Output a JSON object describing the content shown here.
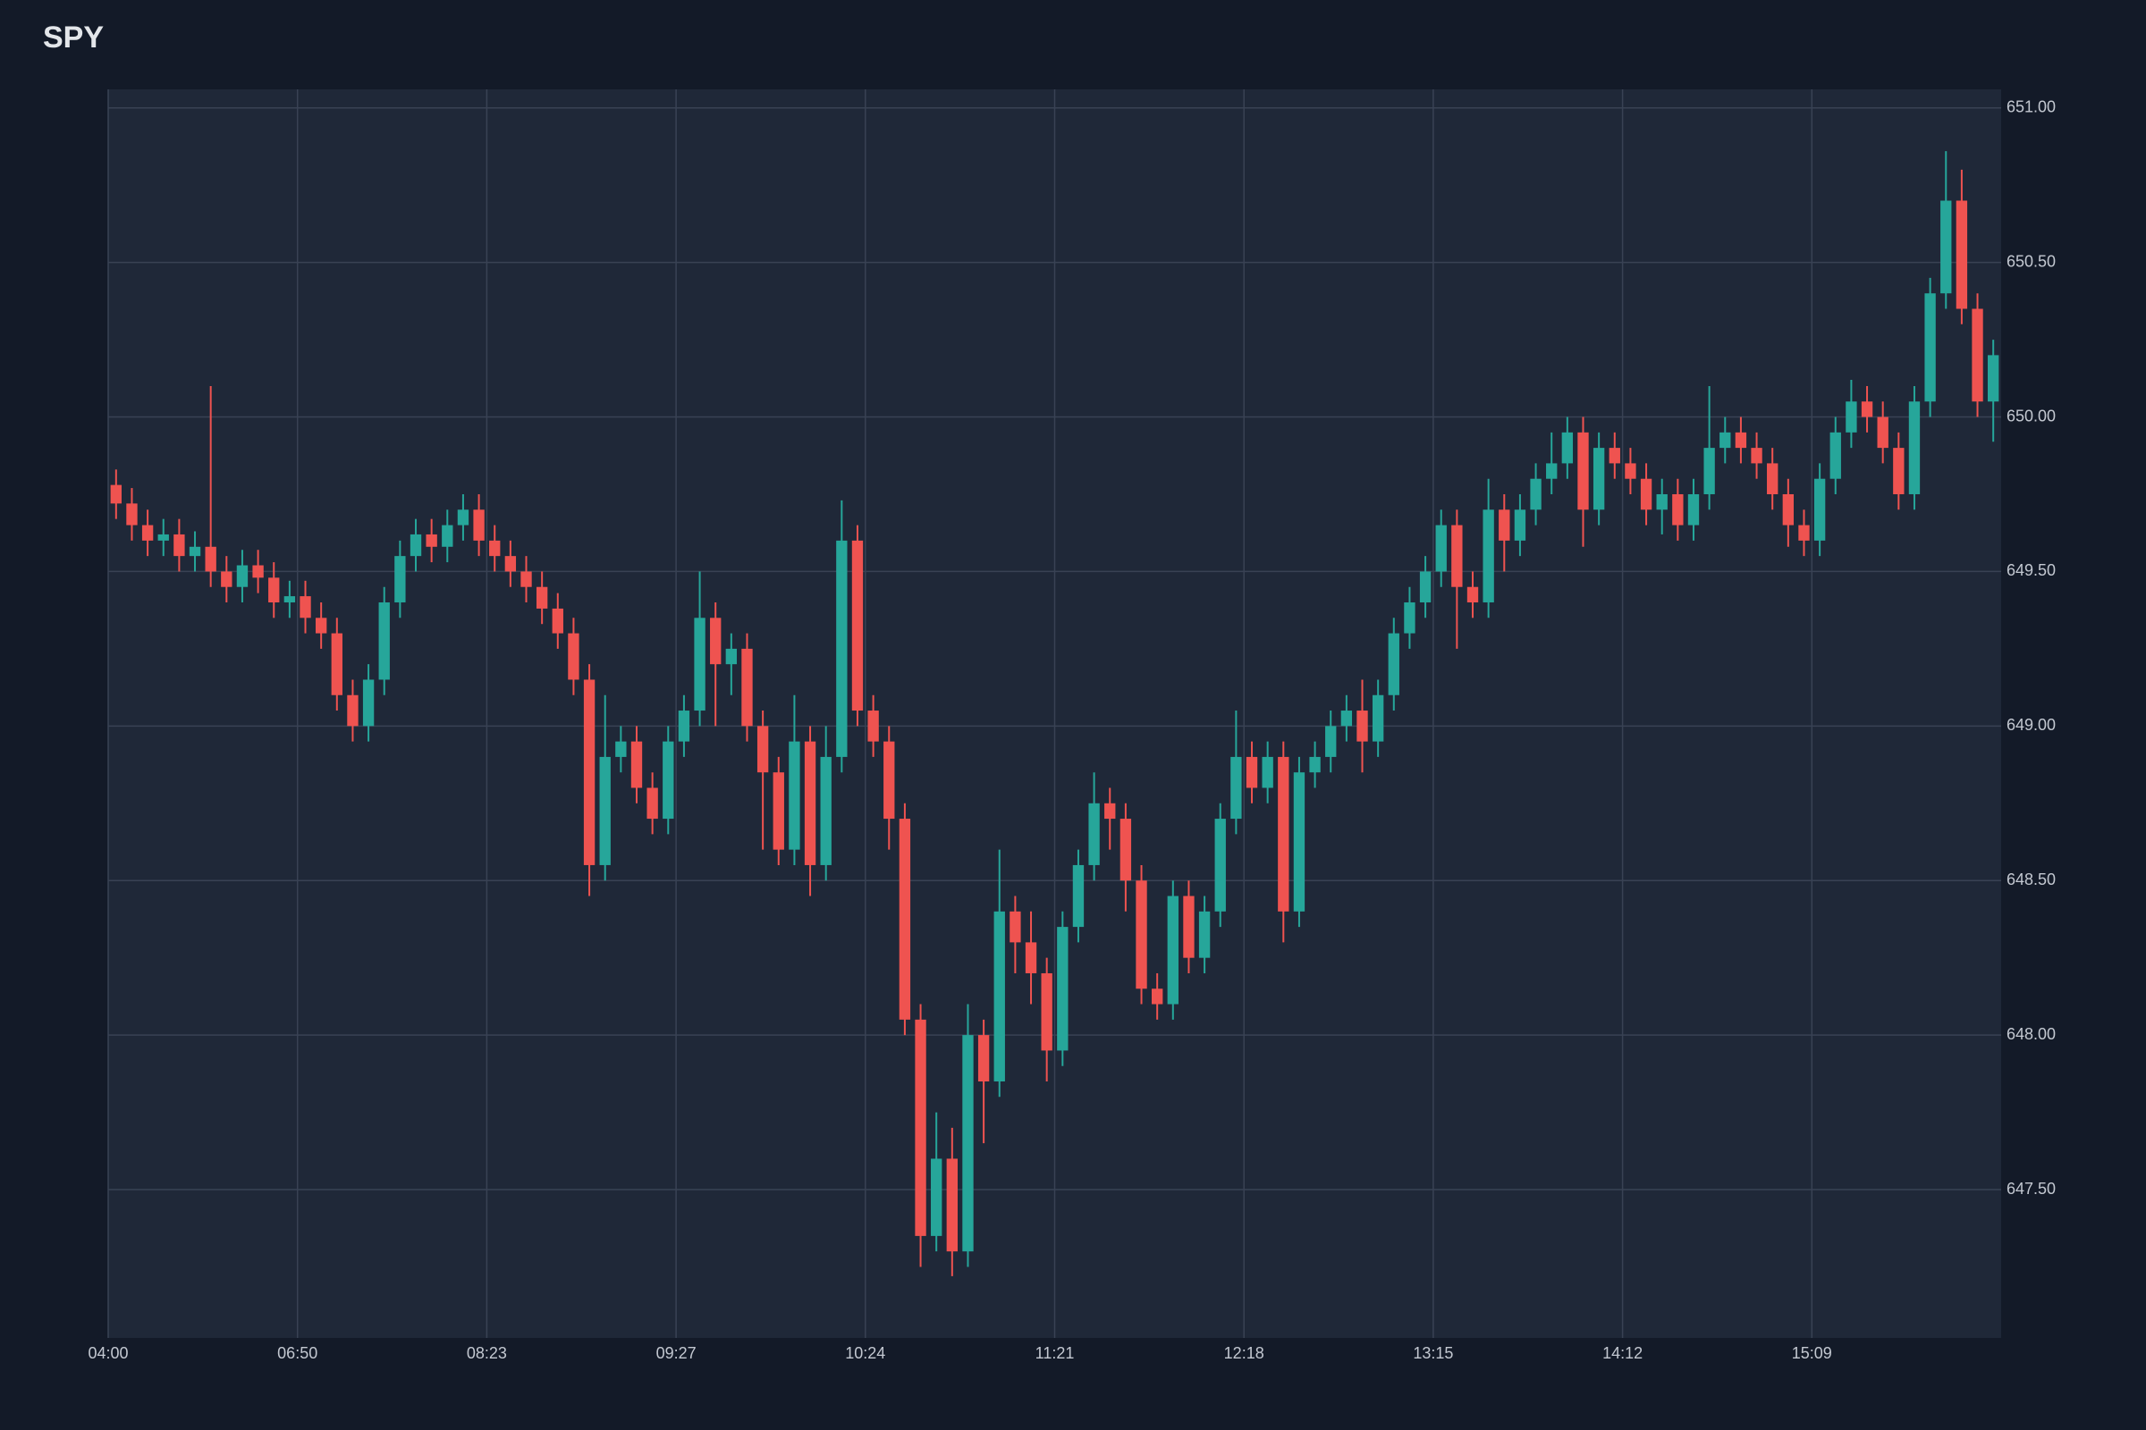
{
  "chart_data": {
    "type": "candlestick",
    "title": "SPY",
    "up_color": "#26a69a",
    "down_color": "#ef5350",
    "grid": true,
    "ylim": [
      647.02,
      651.06
    ],
    "yticks": [
      {
        "value": 647.5,
        "label": "647.50"
      },
      {
        "value": 648,
        "label": "648.00"
      },
      {
        "value": 648.5,
        "label": "648.50"
      },
      {
        "value": 649,
        "label": "649.00"
      },
      {
        "value": 649.5,
        "label": "649.50"
      },
      {
        "value": 650,
        "label": "650.00"
      },
      {
        "value": 650.5,
        "label": "650.50"
      },
      {
        "value": 651,
        "label": "651.00"
      }
    ],
    "categories": [
      "04:00",
      null,
      null,
      null,
      null,
      null,
      null,
      null,
      null,
      null,
      null,
      null,
      "06:50",
      null,
      null,
      null,
      null,
      null,
      null,
      null,
      null,
      null,
      null,
      null,
      "08:23",
      null,
      null,
      null,
      null,
      null,
      null,
      null,
      null,
      null,
      null,
      null,
      "09:27",
      null,
      null,
      null,
      null,
      null,
      null,
      null,
      null,
      null,
      null,
      null,
      "10:24",
      null,
      null,
      null,
      null,
      null,
      null,
      null,
      null,
      null,
      null,
      null,
      "11:21",
      null,
      null,
      null,
      null,
      null,
      null,
      null,
      null,
      null,
      null,
      null,
      "12:18",
      null,
      null,
      null,
      null,
      null,
      null,
      null,
      null,
      null,
      null,
      null,
      "13:15",
      null,
      null,
      null,
      null,
      null,
      null,
      null,
      null,
      null,
      null,
      null,
      "14:12",
      null,
      null,
      null,
      null,
      null,
      null,
      null,
      null,
      null,
      null,
      null,
      "15:09",
      null,
      null,
      null,
      null,
      null,
      null,
      null,
      null,
      null,
      null,
      null
    ],
    "open": [
      649.78,
      649.72,
      649.65,
      649.6,
      649.62,
      649.55,
      649.58,
      649.5,
      649.45,
      649.52,
      649.48,
      649.4,
      649.42,
      649.35,
      649.3,
      649.1,
      649.0,
      649.15,
      649.4,
      649.55,
      649.62,
      649.58,
      649.65,
      649.7,
      649.6,
      649.55,
      649.5,
      649.45,
      649.38,
      649.3,
      649.15,
      648.55,
      648.9,
      648.95,
      648.8,
      648.7,
      648.95,
      649.05,
      649.35,
      649.2,
      649.25,
      649.0,
      648.85,
      648.6,
      648.95,
      648.55,
      648.9,
      649.6,
      649.05,
      648.95,
      648.7,
      648.05,
      647.35,
      647.6,
      647.3,
      648.0,
      647.85,
      648.4,
      648.3,
      648.2,
      647.95,
      648.35,
      648.55,
      648.75,
      648.7,
      648.5,
      648.15,
      648.1,
      648.45,
      648.25,
      648.4,
      648.7,
      648.9,
      648.8,
      648.9,
      648.4,
      648.85,
      648.9,
      649.0,
      649.05,
      648.95,
      649.1,
      649.3,
      649.4,
      649.5,
      649.65,
      649.45,
      649.4,
      649.7,
      649.6,
      649.7,
      649.8,
      649.85,
      649.95,
      649.7,
      649.9,
      649.85,
      649.8,
      649.7,
      649.75,
      649.65,
      649.75,
      649.9,
      649.95,
      649.9,
      649.85,
      649.75,
      649.65,
      649.6,
      649.8,
      649.95,
      650.05,
      650.0,
      649.9,
      649.75,
      650.05,
      650.4,
      650.7,
      650.35,
      650.05
    ],
    "high": [
      649.83,
      649.77,
      649.7,
      649.67,
      649.67,
      649.63,
      650.1,
      649.55,
      649.57,
      649.57,
      649.53,
      649.47,
      649.47,
      649.4,
      649.35,
      649.15,
      649.2,
      649.45,
      649.6,
      649.67,
      649.67,
      649.7,
      649.75,
      649.75,
      649.65,
      649.6,
      649.55,
      649.5,
      649.43,
      649.35,
      649.2,
      649.1,
      649.0,
      649.0,
      648.85,
      649.0,
      649.1,
      649.5,
      649.4,
      649.3,
      649.3,
      649.05,
      648.9,
      649.1,
      649.0,
      649.0,
      649.73,
      649.65,
      649.1,
      649.0,
      648.75,
      648.1,
      647.75,
      647.7,
      648.1,
      648.05,
      648.6,
      648.45,
      648.4,
      648.25,
      648.4,
      648.6,
      648.85,
      648.8,
      648.75,
      648.55,
      648.2,
      648.5,
      648.5,
      648.45,
      648.75,
      649.05,
      648.95,
      648.95,
      648.95,
      648.9,
      648.95,
      649.05,
      649.1,
      649.15,
      649.15,
      649.35,
      649.45,
      649.55,
      649.7,
      649.7,
      649.5,
      649.8,
      649.75,
      649.75,
      649.85,
      649.95,
      650.0,
      650.0,
      649.95,
      649.95,
      649.9,
      649.85,
      649.8,
      649.8,
      649.8,
      650.1,
      650.0,
      650.0,
      649.95,
      649.9,
      649.8,
      649.7,
      649.85,
      650.0,
      650.12,
      650.1,
      650.05,
      649.95,
      650.1,
      650.45,
      650.86,
      650.8,
      650.4,
      650.25
    ],
    "low": [
      649.67,
      649.6,
      649.55,
      649.55,
      649.5,
      649.5,
      649.45,
      649.4,
      649.4,
      649.43,
      649.35,
      649.35,
      649.3,
      649.25,
      649.05,
      648.95,
      648.95,
      649.1,
      649.35,
      649.5,
      649.53,
      649.53,
      649.6,
      649.55,
      649.5,
      649.45,
      649.4,
      649.33,
      649.25,
      649.1,
      648.45,
      648.5,
      648.85,
      648.75,
      648.65,
      648.65,
      648.9,
      649.0,
      649.0,
      649.1,
      648.95,
      648.6,
      648.55,
      648.55,
      648.45,
      648.5,
      648.85,
      649.0,
      648.9,
      648.6,
      648.0,
      647.25,
      647.3,
      647.22,
      647.25,
      647.65,
      647.8,
      648.2,
      648.1,
      647.85,
      647.9,
      648.3,
      648.5,
      648.6,
      648.4,
      648.1,
      648.05,
      648.05,
      648.2,
      648.2,
      648.35,
      648.65,
      648.75,
      648.75,
      648.3,
      648.35,
      648.8,
      648.85,
      648.95,
      648.85,
      648.9,
      649.05,
      649.25,
      649.35,
      649.45,
      649.25,
      649.35,
      649.35,
      649.5,
      649.55,
      649.65,
      649.75,
      649.8,
      649.58,
      649.65,
      649.8,
      649.75,
      649.65,
      649.62,
      649.6,
      649.6,
      649.7,
      649.85,
      649.85,
      649.8,
      649.7,
      649.58,
      649.55,
      649.55,
      649.75,
      649.9,
      649.95,
      649.85,
      649.7,
      649.7,
      650.0,
      650.35,
      650.3,
      650.0,
      649.92
    ],
    "close": [
      649.72,
      649.65,
      649.6,
      649.62,
      649.55,
      649.58,
      649.5,
      649.45,
      649.52,
      649.48,
      649.4,
      649.42,
      649.35,
      649.3,
      649.1,
      649.0,
      649.15,
      649.4,
      649.55,
      649.62,
      649.58,
      649.65,
      649.7,
      649.6,
      649.55,
      649.5,
      649.45,
      649.38,
      649.3,
      649.15,
      648.55,
      648.9,
      648.95,
      648.8,
      648.7,
      648.95,
      649.05,
      649.35,
      649.2,
      649.25,
      649.0,
      648.85,
      648.6,
      648.95,
      648.55,
      648.9,
      649.6,
      649.05,
      648.95,
      648.7,
      648.05,
      647.35,
      647.6,
      647.3,
      648.0,
      647.85,
      648.4,
      648.3,
      648.2,
      647.95,
      648.35,
      648.55,
      648.75,
      648.7,
      648.5,
      648.15,
      648.1,
      648.45,
      648.25,
      648.4,
      648.7,
      648.9,
      648.8,
      648.9,
      648.4,
      648.85,
      648.9,
      649.0,
      649.05,
      648.95,
      649.1,
      649.3,
      649.4,
      649.5,
      649.65,
      649.45,
      649.4,
      649.7,
      649.6,
      649.7,
      649.8,
      649.85,
      649.95,
      649.7,
      649.9,
      649.85,
      649.8,
      649.7,
      649.75,
      649.65,
      649.75,
      649.9,
      649.95,
      649.9,
      649.85,
      649.75,
      649.65,
      649.6,
      649.8,
      649.95,
      650.05,
      650.0,
      649.9,
      649.75,
      650.05,
      650.4,
      650.7,
      650.35,
      650.05,
      650.2
    ]
  }
}
